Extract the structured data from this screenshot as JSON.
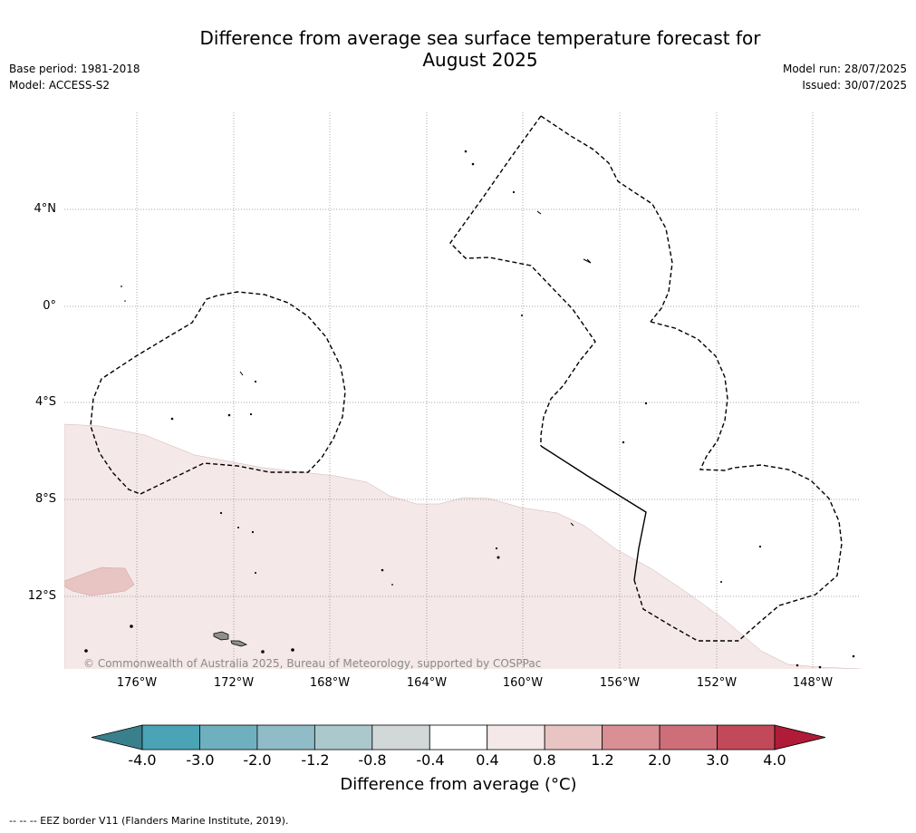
{
  "title_line1": "Difference from average sea surface temperature forecast for",
  "title_line2": "August 2025",
  "base_period": "Base period: 1981-2018",
  "model": "Model: ACCESS-S2",
  "model_run": "Model run: 28/07/2025",
  "issued": "Issued: 30/07/2025",
  "copyright": "© Commonwealth of Australia 2025, Bureau of Meteorology, supported by COSPPac",
  "footnote": "--  --  -- EEZ border V11 (Flanders Marine Institute, 2019).",
  "longitude_labels": [
    "176°W",
    "172°W",
    "168°W",
    "164°W",
    "160°W",
    "156°W",
    "152°W",
    "148°W"
  ],
  "latitude_labels": [
    "4°N",
    "0°",
    "4°S",
    "8°S",
    "12°S"
  ],
  "colorbar": {
    "ticks": [
      "-4.0",
      "-3.0",
      "-2.0",
      "-1.2",
      "-0.8",
      "-0.4",
      "0.4",
      "0.8",
      "1.2",
      "2.0",
      "3.0",
      "4.0"
    ],
    "colors": [
      "#4aa4b5",
      "#6fb0bf",
      "#8fbcc6",
      "#abc8cd",
      "#d2d7d8",
      "#ffffff",
      "#f5e8e8",
      "#e8c5c2",
      "#d98f94",
      "#cd6e78",
      "#c2495a"
    ],
    "under_color": "#3a7f8c",
    "over_color": "#b01b37",
    "label": "Difference from average (°C)"
  },
  "legend_colors": {
    "anomaly_0_4_to_0_8": "#f5e8e8",
    "anomaly_0_8_to_1_2": "#e8c5c2",
    "land": "#8f8f8f",
    "eez_border": "#000000",
    "grid": "#888888"
  }
}
